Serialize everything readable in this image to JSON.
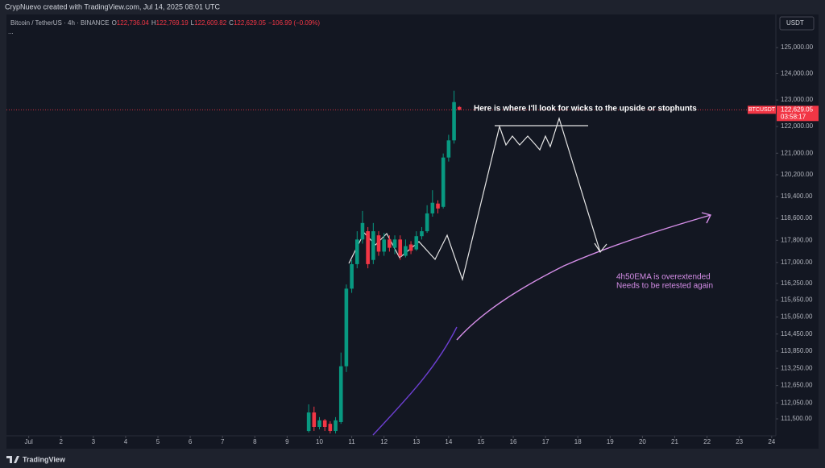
{
  "header": {
    "credit": "CrypNuevo created with TradingView.com, Jul 14, 2025 08:01 UTC",
    "symbol": "Bitcoin / TetherUS · 4h · BINANCE",
    "ohlc": [
      {
        "key": "O",
        "value": "122,736.04"
      },
      {
        "key": "H",
        "value": "122,769.19"
      },
      {
        "key": "L",
        "value": "122,609.82"
      },
      {
        "key": "C",
        "value": "122,629.05"
      }
    ],
    "change": "−106.99 (−0.09%)",
    "more": "..."
  },
  "currency": "USDT",
  "footer": "TradingView",
  "chart_data": {
    "type": "candlestick",
    "x": [
      9.667,
      9.833,
      10.0,
      10.167,
      10.333,
      10.5,
      10.667,
      10.833,
      11.0,
      11.167,
      11.333,
      11.5,
      11.667,
      11.833,
      12.0,
      12.167,
      12.333,
      12.5,
      12.667,
      12.833,
      13.0,
      13.167,
      13.333,
      13.5,
      13.667,
      13.833,
      14.0,
      14.167,
      14.333
    ],
    "open": [
      111085,
      111720,
      111224,
      111450,
      111330,
      111085,
      111390,
      113320,
      116060,
      116940,
      117830,
      118130,
      117090,
      117980,
      117390,
      117830,
      117530,
      117830,
      117240,
      117650,
      117470,
      117950,
      118130,
      118780,
      119140,
      119020,
      120840,
      121480,
      122736.04
    ],
    "high": [
      112000,
      111920,
      111560,
      111500,
      111420,
      111560,
      113800,
      116210,
      117090,
      118130,
      118870,
      118280,
      118430,
      118130,
      118070,
      117980,
      117980,
      117980,
      117830,
      117770,
      118130,
      118280,
      119080,
      119630,
      119260,
      120990,
      121690,
      123350,
      122769.19
    ],
    "low": [
      111030,
      111085,
      111140,
      111085,
      111000,
      111000,
      111330,
      113120,
      115910,
      116790,
      117680,
      116790,
      116940,
      117240,
      117240,
      117390,
      117300,
      117090,
      117180,
      117300,
      117420,
      117830,
      118070,
      118660,
      118780,
      118960,
      120690,
      121360,
      122609.82
    ],
    "close": [
      111720,
      111224,
      111450,
      111224,
      111085,
      111450,
      113320,
      116060,
      116940,
      117830,
      118430,
      116940,
      118130,
      117390,
      117830,
      117530,
      117830,
      117240,
      117590,
      117420,
      117950,
      118130,
      118780,
      119170,
      118960,
      120840,
      121480,
      122920,
      122629.05
    ],
    "up_color": "#089981",
    "down_color": "#f23645",
    "log": true,
    "xlim": [
      0.31,
      24.13
    ],
    "xticks": [
      {
        "value": 1,
        "label": "Jul"
      },
      2,
      3,
      4,
      5,
      6,
      7,
      8,
      9,
      10,
      11,
      12,
      13,
      14,
      15,
      16,
      17,
      18,
      19,
      20,
      21,
      22,
      23,
      24
    ],
    "ylim": [
      110921,
      126280
    ],
    "yticks": [
      {
        "value": 111500,
        "label": "111,500.00"
      },
      {
        "value": 112050,
        "label": "112,050.00"
      },
      {
        "value": 112650,
        "label": "112,650.00"
      },
      {
        "value": 113250,
        "label": "113,250.00"
      },
      {
        "value": 113850,
        "label": "113,850.00"
      },
      {
        "value": 114450,
        "label": "114,450.00"
      },
      {
        "value": 115050,
        "label": "115,050.00"
      },
      {
        "value": 115650,
        "label": "115,650.00"
      },
      {
        "value": 116250,
        "label": "116,250.00"
      },
      {
        "value": 117000,
        "label": "117,000.00"
      },
      {
        "value": 117800,
        "label": "117,800.00"
      },
      {
        "value": 118600,
        "label": "118,600.00"
      },
      {
        "value": 119400,
        "label": "119,400.00"
      },
      {
        "value": 120200,
        "label": "120,200.00"
      },
      {
        "value": 121000,
        "label": "121,000.00"
      },
      {
        "value": 122000,
        "label": "122,000.00"
      },
      {
        "value": 123000,
        "label": "123,000.00"
      },
      {
        "value": 124000,
        "label": "124,000.00"
      },
      {
        "value": 125000,
        "label": "125,000.00"
      }
    ],
    "last_price": {
      "symbol": "BTCUSDT",
      "label": "122,629.05",
      "countdown": "03:58:17"
    },
    "annotations": [
      "Here is where I'll look for wicks to the upside or stophunts",
      "4h50EMA is overextended",
      "Needs to be retested again"
    ]
  }
}
